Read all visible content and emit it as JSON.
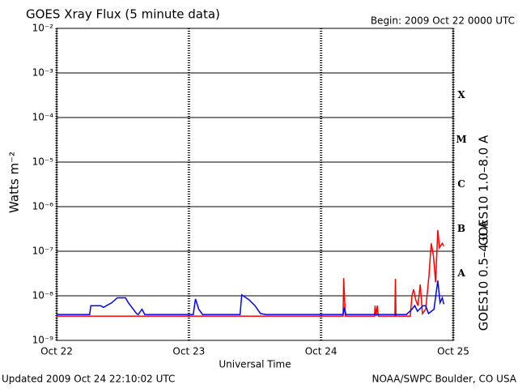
{
  "chart_data": {
    "type": "line",
    "title": "GOES Xray Flux (5 minute data)",
    "subtitle": "Begin:  2009 Oct 22 0000 UTC",
    "xlabel": "Universal Time",
    "ylabel": "Watts m⁻²",
    "footer_left": "Updated 2009 Oct 24 22:10:02 UTC",
    "footer_right": "NOAA/SWPC Boulder, CO USA",
    "flare_classes": [
      "X",
      "M",
      "C",
      "B",
      "A"
    ],
    "log_y": true,
    "grid": true,
    "xlim": [
      0,
      72
    ],
    "xticks": [
      {
        "value": 0,
        "label": "Oct 22"
      },
      {
        "value": 24,
        "label": "Oct 23"
      },
      {
        "value": 48,
        "label": "Oct 24"
      },
      {
        "value": 72,
        "label": "Oct 25"
      }
    ],
    "ylim": [
      1e-09,
      0.01
    ],
    "yticks": [
      {
        "value": 1e-09,
        "label": "10⁻⁹"
      },
      {
        "value": 1e-08,
        "label": "10⁻⁸"
      },
      {
        "value": 1e-07,
        "label": "10⁻⁷"
      },
      {
        "value": 1e-06,
        "label": "10⁻⁶"
      },
      {
        "value": 1e-05,
        "label": "10⁻⁵"
      },
      {
        "value": 0.0001,
        "label": "10⁻⁴"
      },
      {
        "value": 0.001,
        "label": "10⁻³"
      },
      {
        "value": 0.01,
        "label": "10⁻²"
      }
    ],
    "series": [
      {
        "name": "GOES10 1.0–8.0 A",
        "color": "#ff0000",
        "x": [
          0,
          52,
          52.1,
          52.4,
          57.7,
          57.8,
          58,
          58.2,
          58.4,
          61.4,
          61.5,
          61.6,
          64.2,
          64.5,
          64.8,
          65.2,
          65.6,
          66,
          66.4,
          67,
          67.6,
          68,
          68.4,
          68.8,
          69.2,
          69.5,
          70,
          70.3
        ],
        "values": [
          3.5e-09,
          3.5e-09,
          2.5e-08,
          3.5e-09,
          3.5e-09,
          6e-09,
          3.5e-09,
          6e-09,
          3.5e-09,
          3.5e-09,
          2.4e-08,
          3.5e-09,
          3.5e-09,
          1e-08,
          1.4e-08,
          8e-09,
          6e-09,
          1.8e-08,
          4e-09,
          5e-09,
          3e-08,
          1.5e-07,
          8e-08,
          2e-08,
          3e-07,
          1.2e-07,
          1.5e-07,
          1.3e-07
        ]
      },
      {
        "name": "GOES10 0.5–4.0 A",
        "color": "#0000ff",
        "x": [
          0,
          6,
          6.2,
          8,
          8.5,
          10,
          11,
          12.5,
          13,
          14.5,
          14.8,
          15.5,
          16,
          24.8,
          25.2,
          25.8,
          26.5,
          33.3,
          33.6,
          35,
          36,
          37,
          38,
          52,
          52.2,
          52.5,
          63.5,
          64.5,
          65,
          65.5,
          66.5,
          67,
          67.5,
          68.5,
          69.2,
          69.6,
          70,
          70.3
        ],
        "values": [
          3.8e-09,
          3.8e-09,
          6e-09,
          6e-09,
          5.5e-09,
          7e-09,
          9e-09,
          9e-09,
          7e-09,
          4e-09,
          3.8e-09,
          5e-09,
          3.8e-09,
          3.8e-09,
          8.5e-09,
          5e-09,
          3.8e-09,
          3.8e-09,
          1.05e-08,
          8e-09,
          6e-09,
          4e-09,
          3.8e-09,
          3.8e-09,
          5.5e-09,
          3.8e-09,
          3.8e-09,
          5e-09,
          6e-09,
          4.5e-09,
          6e-09,
          6e-09,
          4e-09,
          5e-09,
          2.2e-08,
          7e-09,
          9e-09,
          6.5e-09
        ]
      }
    ]
  }
}
